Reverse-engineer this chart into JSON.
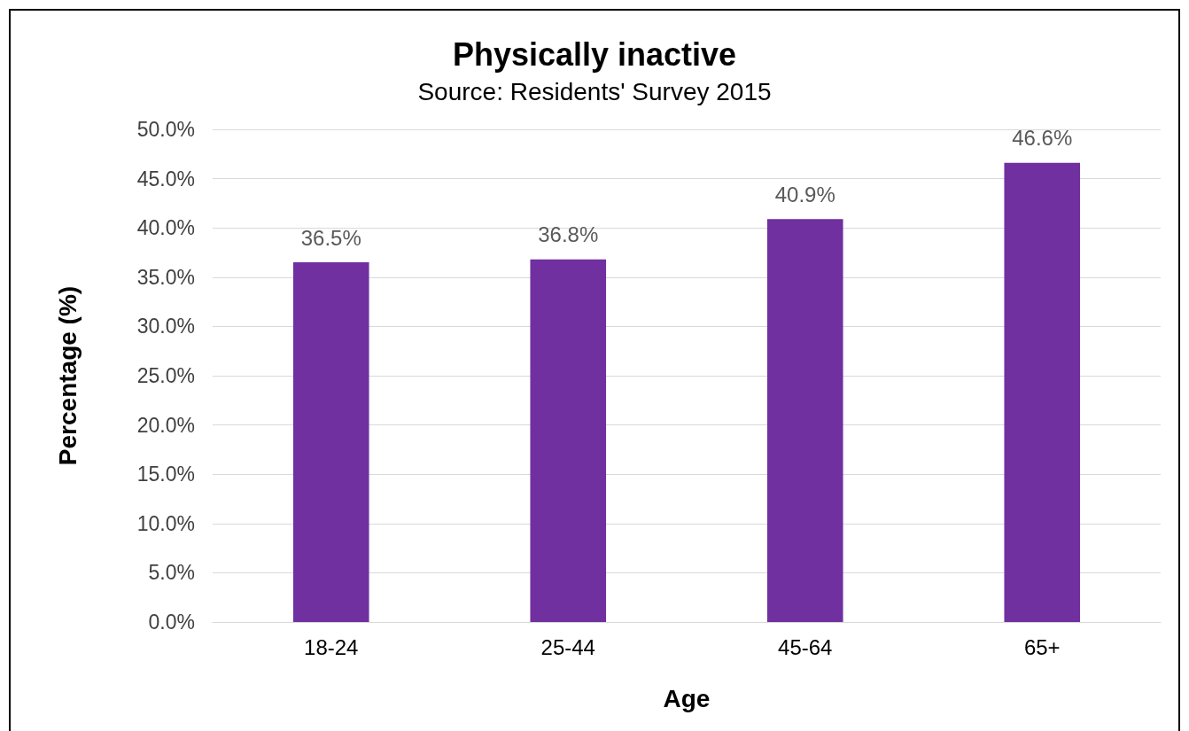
{
  "chart_data": {
    "type": "bar",
    "title": "Physically inactive",
    "subtitle": "Source: Residents' Survey 2015",
    "xlabel": "Age",
    "ylabel": "Percentage (%)",
    "categories": [
      "18-24",
      "25-44",
      "45-64",
      "65+"
    ],
    "values": [
      36.5,
      36.8,
      40.9,
      46.6
    ],
    "value_labels": [
      "36.5%",
      "36.8%",
      "40.9%",
      "46.6%"
    ],
    "color": "#7030a0",
    "ylim": [
      0,
      50
    ],
    "yticks": [
      {
        "value": 0,
        "label": "0.0%"
      },
      {
        "value": 5,
        "label": "5.0%"
      },
      {
        "value": 10,
        "label": "10.0%"
      },
      {
        "value": 15,
        "label": "15.0%"
      },
      {
        "value": 20,
        "label": "20.0%"
      },
      {
        "value": 25,
        "label": "25.0%"
      },
      {
        "value": 30,
        "label": "30.0%"
      },
      {
        "value": 35,
        "label": "35.0%"
      },
      {
        "value": 40,
        "label": "40.0%"
      },
      {
        "value": 45,
        "label": "45.0%"
      },
      {
        "value": 50,
        "label": "50.0%"
      }
    ],
    "grid": "y"
  }
}
